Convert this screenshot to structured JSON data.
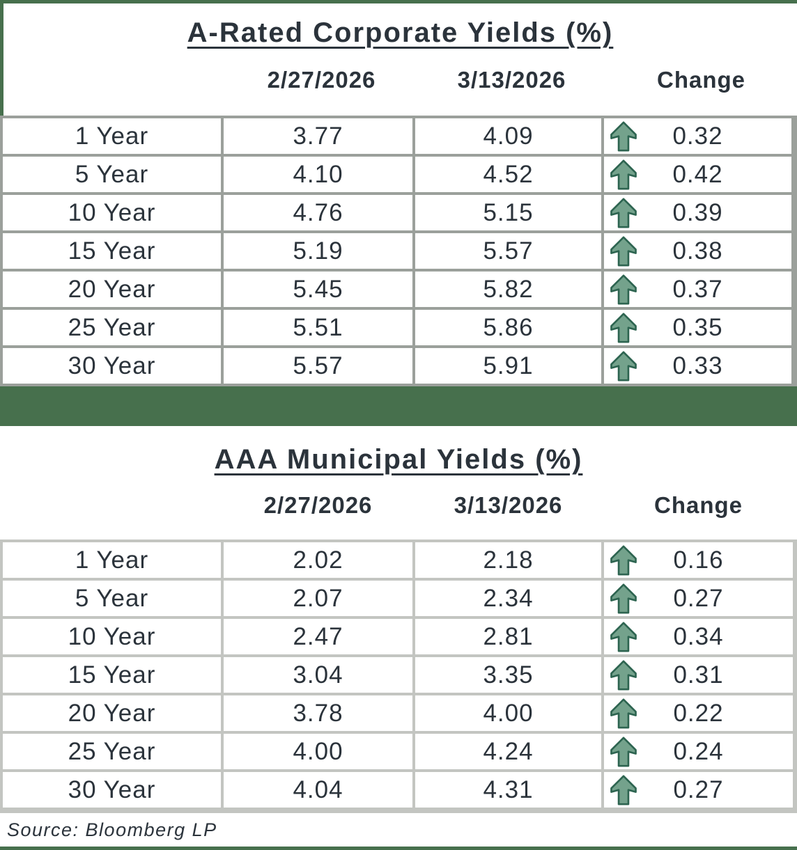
{
  "page": {
    "source_label": "Source: Bloomberg LP",
    "colors": {
      "accent_green": "#47704d",
      "grid_dark": "#9ba09b",
      "grid_light": "#c3c5c1",
      "text": "#2b333b",
      "arrow_fill": "#74a28c",
      "arrow_outline": "#2d6450"
    },
    "icons": {
      "change_icon": "up-arrow-icon"
    }
  },
  "tables": [
    {
      "title": "A-Rated Corporate Yields (%)",
      "columns": [
        "",
        "2/27/2026",
        "3/13/2026",
        "Change"
      ],
      "rows": [
        {
          "label": "1 Year",
          "prev": "3.77",
          "curr": "4.09",
          "change": "0.32",
          "direction": "up"
        },
        {
          "label": "5 Year",
          "prev": "4.10",
          "curr": "4.52",
          "change": "0.42",
          "direction": "up"
        },
        {
          "label": "10 Year",
          "prev": "4.76",
          "curr": "5.15",
          "change": "0.39",
          "direction": "up"
        },
        {
          "label": "15 Year",
          "prev": "5.19",
          "curr": "5.57",
          "change": "0.38",
          "direction": "up"
        },
        {
          "label": "20 Year",
          "prev": "5.45",
          "curr": "5.82",
          "change": "0.37",
          "direction": "up"
        },
        {
          "label": "25 Year",
          "prev": "5.51",
          "curr": "5.86",
          "change": "0.35",
          "direction": "up"
        },
        {
          "label": "30 Year",
          "prev": "5.57",
          "curr": "5.91",
          "change": "0.33",
          "direction": "up"
        }
      ]
    },
    {
      "title": "AAA Municipal Yields (%)",
      "columns": [
        "",
        "2/27/2026",
        "3/13/2026",
        "Change"
      ],
      "rows": [
        {
          "label": "1 Year",
          "prev": "2.02",
          "curr": "2.18",
          "change": "0.16",
          "direction": "up"
        },
        {
          "label": "5 Year",
          "prev": "2.07",
          "curr": "2.34",
          "change": "0.27",
          "direction": "up"
        },
        {
          "label": "10 Year",
          "prev": "2.47",
          "curr": "2.81",
          "change": "0.34",
          "direction": "up"
        },
        {
          "label": "15 Year",
          "prev": "3.04",
          "curr": "3.35",
          "change": "0.31",
          "direction": "up"
        },
        {
          "label": "20 Year",
          "prev": "3.78",
          "curr": "4.00",
          "change": "0.22",
          "direction": "up"
        },
        {
          "label": "25 Year",
          "prev": "4.00",
          "curr": "4.24",
          "change": "0.24",
          "direction": "up"
        },
        {
          "label": "30 Year",
          "prev": "4.04",
          "curr": "4.31",
          "change": "0.27",
          "direction": "up"
        }
      ]
    }
  ],
  "chart_data": [
    {
      "type": "table",
      "title": "A-Rated Corporate Yields (%)",
      "columns": [
        "",
        "2/27/2026",
        "3/13/2026",
        "Change"
      ],
      "categories": [
        "1 Year",
        "5 Year",
        "10 Year",
        "15 Year",
        "20 Year",
        "25 Year",
        "30 Year"
      ],
      "series": [
        {
          "name": "2/27/2026",
          "values": [
            3.77,
            4.1,
            4.76,
            5.19,
            5.45,
            5.51,
            5.57
          ]
        },
        {
          "name": "3/13/2026",
          "values": [
            4.09,
            4.52,
            5.15,
            5.57,
            5.82,
            5.86,
            5.91
          ]
        },
        {
          "name": "Change",
          "values": [
            0.32,
            0.42,
            0.39,
            0.38,
            0.37,
            0.35,
            0.33
          ]
        }
      ]
    },
    {
      "type": "table",
      "title": "AAA Municipal Yields (%)",
      "columns": [
        "",
        "2/27/2026",
        "3/13/2026",
        "Change"
      ],
      "categories": [
        "1 Year",
        "5 Year",
        "10 Year",
        "15 Year",
        "20 Year",
        "25 Year",
        "30 Year"
      ],
      "series": [
        {
          "name": "2/27/2026",
          "values": [
            2.02,
            2.07,
            2.47,
            3.04,
            3.78,
            4.0,
            4.04
          ]
        },
        {
          "name": "3/13/2026",
          "values": [
            2.18,
            2.34,
            2.81,
            3.35,
            4.0,
            4.24,
            4.31
          ]
        },
        {
          "name": "Change",
          "values": [
            0.16,
            0.27,
            0.34,
            0.31,
            0.22,
            0.24,
            0.27
          ]
        }
      ]
    }
  ]
}
